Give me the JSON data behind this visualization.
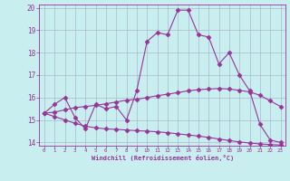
{
  "xlabel": "Windchill (Refroidissement éolien,°C)",
  "background_color": "#c8eef0",
  "grid_color": "#aabbcc",
  "line_color": "#993399",
  "xlim": [
    -0.5,
    23.5
  ],
  "ylim": [
    13.85,
    20.15
  ],
  "yticks": [
    14,
    15,
    16,
    17,
    18,
    19,
    20
  ],
  "xticks": [
    0,
    1,
    2,
    3,
    4,
    5,
    6,
    7,
    8,
    9,
    10,
    11,
    12,
    13,
    14,
    15,
    16,
    17,
    18,
    19,
    20,
    21,
    22,
    23
  ],
  "line1_x": [
    0,
    1,
    2,
    3,
    4,
    5,
    6,
    7,
    8,
    9,
    10,
    11,
    12,
    13,
    14,
    15,
    16,
    17,
    18,
    19,
    20,
    21,
    22,
    23
  ],
  "line1_y": [
    15.3,
    15.7,
    16.0,
    15.1,
    14.6,
    15.7,
    15.5,
    15.6,
    15.0,
    16.3,
    18.5,
    18.9,
    18.8,
    19.9,
    19.9,
    18.8,
    18.7,
    17.5,
    18.0,
    17.0,
    16.3,
    14.8,
    14.1,
    14.0
  ],
  "line2_x": [
    0,
    1,
    2,
    3,
    4,
    5,
    6,
    7,
    8,
    9,
    10,
    11,
    12,
    13,
    14,
    15,
    16,
    17,
    18,
    19,
    20,
    21,
    22,
    23
  ],
  "line2_y": [
    15.3,
    15.35,
    15.45,
    15.55,
    15.6,
    15.65,
    15.72,
    15.8,
    15.88,
    15.92,
    16.0,
    16.08,
    16.15,
    16.22,
    16.3,
    16.35,
    16.38,
    16.4,
    16.38,
    16.32,
    16.25,
    16.1,
    15.85,
    15.6
  ],
  "line3_x": [
    0,
    1,
    2,
    3,
    4,
    5,
    6,
    7,
    8,
    9,
    10,
    11,
    12,
    13,
    14,
    15,
    16,
    17,
    18,
    19,
    20,
    21,
    22,
    23
  ],
  "line3_y": [
    15.3,
    15.15,
    15.0,
    14.85,
    14.72,
    14.65,
    14.6,
    14.58,
    14.55,
    14.52,
    14.5,
    14.47,
    14.43,
    14.38,
    14.33,
    14.28,
    14.22,
    14.15,
    14.08,
    14.02,
    13.97,
    13.93,
    13.9,
    13.88
  ]
}
